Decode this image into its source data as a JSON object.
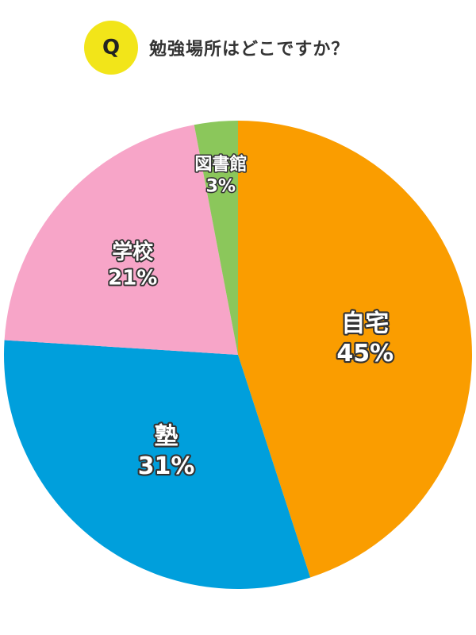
{
  "header": {
    "badge": "Q",
    "question": "勉強場所はどこですか？"
  },
  "colors": {
    "badge": "#f2e519",
    "home": "#fa9d00",
    "cram_school": "#009fdc",
    "school": "#f7a5c8",
    "library": "#8bc75b"
  },
  "chart_data": {
    "type": "pie",
    "title": "勉強場所はどこですか？",
    "unit": "%",
    "slices": [
      {
        "label": "自宅",
        "value": 45,
        "value_label": "45%",
        "color": "#fa9d00"
      },
      {
        "label": "塾",
        "value": 31,
        "value_label": "31%",
        "color": "#009fdc"
      },
      {
        "label": "学校",
        "value": 21,
        "value_label": "21%",
        "color": "#f7a5c8"
      },
      {
        "label": "図書館",
        "value": 3,
        "value_label": "3%",
        "color": "#8bc75b"
      }
    ],
    "start": "12 o'clock",
    "direction": "clockwise",
    "legend": "none (labels inside slices)"
  }
}
